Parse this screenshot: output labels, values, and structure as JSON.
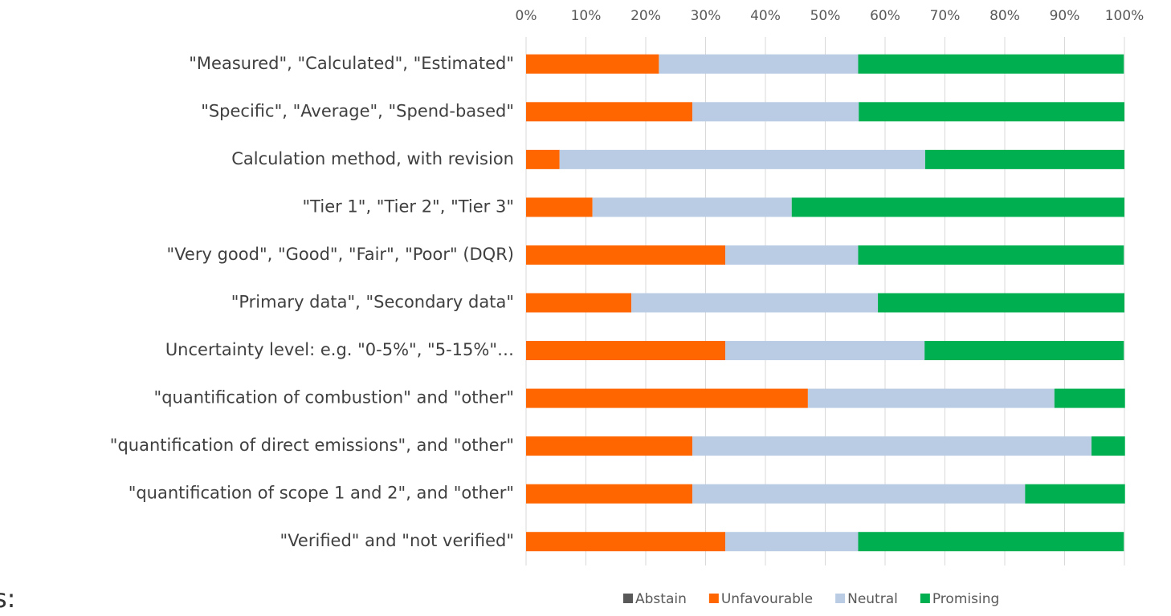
{
  "chart_data": {
    "type": "stacked-bar-horizontal",
    "categories": [
      "\"Measured\", \"Calculated\", \"Estimated\"",
      "\"Specific\", \"Average\", \"Spend-based\"",
      "Calculation method, with revision",
      "\"Tier 1\", \"Tier 2\", \"Tier 3\"",
      "\"Very good\", \"Good\", \"Fair\", \"Poor\" (DQR)",
      "\"Primary data\", \"Secondary data\"",
      "Uncertainty level: e.g. \"0-5%\", \"5-15%\"…",
      "\"quantification of combustion\" and \"other\"",
      "\"quantification of direct emissions\", and \"other\"",
      "\"quantification of scope 1 and 2\", and \"other\"",
      "\"Verified\" and \"not verified\""
    ],
    "series": [
      {
        "name": "Abstain",
        "color": "#595959",
        "values": [
          0,
          0,
          0,
          0,
          0,
          0,
          0,
          0,
          0,
          0,
          0
        ]
      },
      {
        "name": "Unfavourable",
        "color": "#ff6600",
        "values": [
          22.2,
          27.8,
          5.6,
          11.1,
          33.3,
          17.6,
          33.3,
          47.1,
          27.8,
          27.8,
          33.3
        ]
      },
      {
        "name": "Neutral",
        "color": "#b9cce4",
        "values": [
          33.3,
          27.8,
          61.1,
          33.3,
          22.2,
          41.2,
          33.3,
          41.2,
          66.7,
          55.6,
          22.2
        ]
      },
      {
        "name": "Promising",
        "color": "#00b050",
        "values": [
          44.4,
          44.4,
          33.3,
          55.6,
          44.4,
          41.2,
          33.3,
          11.8,
          5.6,
          16.7,
          44.4
        ]
      }
    ],
    "xlim": [
      0,
      100
    ],
    "xticks": [
      {
        "value": 0,
        "label": "0%"
      },
      {
        "value": 10,
        "label": "10%"
      },
      {
        "value": 20,
        "label": "20%"
      },
      {
        "value": 30,
        "label": "30%"
      },
      {
        "value": 40,
        "label": "40%"
      },
      {
        "value": 50,
        "label": "50%"
      },
      {
        "value": 60,
        "label": "60%"
      },
      {
        "value": 70,
        "label": "70%"
      },
      {
        "value": 80,
        "label": "80%"
      },
      {
        "value": 90,
        "label": "90%"
      },
      {
        "value": 100,
        "label": "100%"
      }
    ],
    "grid": true,
    "legend": "bottom",
    "annotation": "s:"
  }
}
